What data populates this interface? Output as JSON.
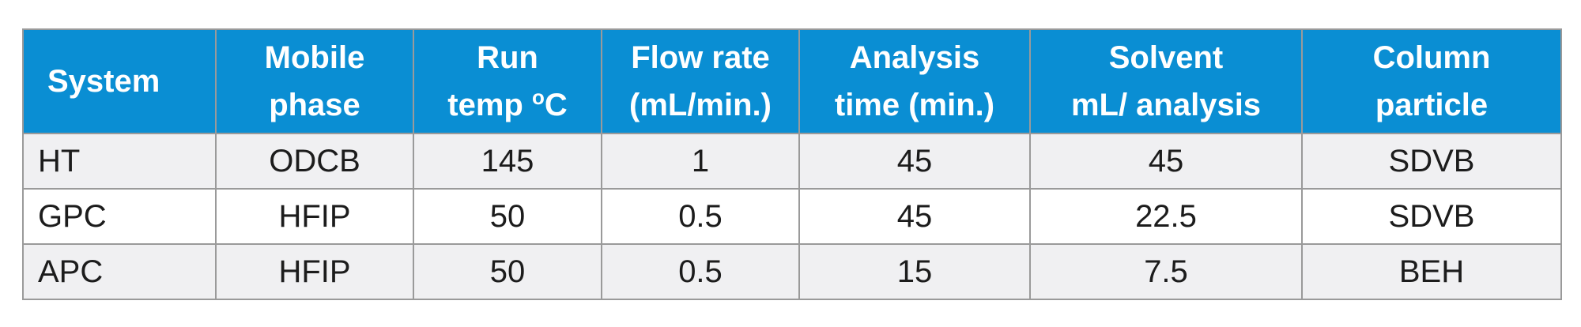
{
  "table": {
    "headers": [
      {
        "lines": [
          "System"
        ]
      },
      {
        "lines": [
          "Mobile",
          "phase"
        ]
      },
      {
        "lines": [
          "Run",
          "temp"
        ],
        "deg_sup": "o",
        "deg_unit": "C"
      },
      {
        "lines": [
          "Flow rate",
          "(mL/min.)"
        ]
      },
      {
        "lines": [
          "Analysis",
          "time (min.)"
        ]
      },
      {
        "lines": [
          "Solvent",
          "mL/ analysis"
        ]
      },
      {
        "lines": [
          "Column",
          "particle"
        ]
      }
    ],
    "rows": [
      [
        "HT",
        "ODCB",
        "145",
        "1",
        "45",
        "45",
        "SDVB"
      ],
      [
        "GPC",
        "HFIP",
        "50",
        "0.5",
        "45",
        "22.5",
        "SDVB"
      ],
      [
        "APC",
        "HFIP",
        "50",
        "0.5",
        "15",
        "7.5",
        "BEH"
      ]
    ]
  },
  "colors": {
    "header_bg": "#0a8ed3",
    "header_text": "#ffffff",
    "border": "#9a9a9a",
    "row_alt_bg": "#f0f0f2"
  }
}
